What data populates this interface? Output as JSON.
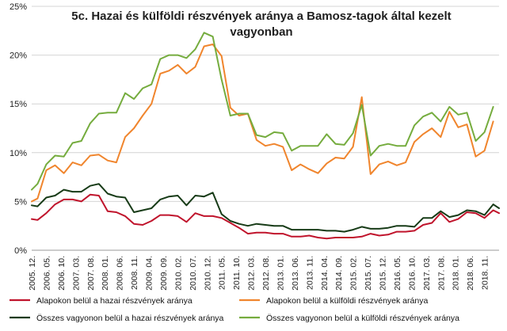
{
  "chart_data": {
    "type": "line",
    "title": "5c. Hazai és külföldi részvények aránya a Bamosz-tagok által kezelt vagyonban",
    "title_lines": [
      "5c. Hazai és külföldi részvények aránya a Bamosz-tagok által kezelt",
      "vagyonban"
    ],
    "ylim": [
      0,
      25
    ],
    "yticks": [
      0,
      5,
      10,
      15,
      20,
      25
    ],
    "ytick_labels": [
      "0%",
      "5%",
      "10%",
      "15%",
      "20%",
      "25%"
    ],
    "x_start": "2005. 12.",
    "x_step_months": 1,
    "xtick_labels": [
      "2005. 12.",
      "2006. 05.",
      "2006. 10.",
      "2007. 03.",
      "2007. 08.",
      "2008. 01.",
      "2008. 06.",
      "2008. 11.",
      "2009. 04.",
      "2009. 09.",
      "2010. 02.",
      "2010. 07.",
      "2010. 12.",
      "2011. 05.",
      "2011. 10.",
      "2012. 03.",
      "2012. 08.",
      "2013. 01.",
      "2013. 06.",
      "2013. 11.",
      "2014. 04.",
      "2014. 09.",
      "2015. 02.",
      "2015. 07.",
      "2015. 12.",
      "2016. 05.",
      "2016. 10.",
      "2017. 03.",
      "2017. 08.",
      "2018. 01.",
      "2018. 06.",
      "2018. 11."
    ],
    "grid": true,
    "legend_position": "bottom",
    "series": [
      {
        "name": "Alapokon belül a hazai részvények aránya",
        "color": "#c0142c",
        "points": [
          [
            0,
            3.2
          ],
          [
            2,
            3.1
          ],
          [
            5,
            3.8
          ],
          [
            8,
            4.7
          ],
          [
            11,
            5.2
          ],
          [
            14,
            5.2
          ],
          [
            17,
            5.0
          ],
          [
            20,
            5.7
          ],
          [
            23,
            5.6
          ],
          [
            26,
            4.0
          ],
          [
            29,
            3.9
          ],
          [
            32,
            3.5
          ],
          [
            35,
            2.7
          ],
          [
            38,
            2.6
          ],
          [
            41,
            3.0
          ],
          [
            44,
            3.6
          ],
          [
            47,
            3.6
          ],
          [
            50,
            3.5
          ],
          [
            53,
            2.9
          ],
          [
            56,
            3.8
          ],
          [
            59,
            3.5
          ],
          [
            62,
            3.5
          ],
          [
            65,
            3.3
          ],
          [
            68,
            2.8
          ],
          [
            71,
            2.3
          ],
          [
            74,
            1.7
          ],
          [
            77,
            1.8
          ],
          [
            80,
            1.8
          ],
          [
            83,
            1.7
          ],
          [
            86,
            1.7
          ],
          [
            89,
            1.4
          ],
          [
            92,
            1.4
          ],
          [
            95,
            1.5
          ],
          [
            98,
            1.3
          ],
          [
            101,
            1.2
          ],
          [
            104,
            1.3
          ],
          [
            107,
            1.3
          ],
          [
            110,
            1.3
          ],
          [
            113,
            1.4
          ],
          [
            116,
            1.7
          ],
          [
            119,
            1.5
          ],
          [
            122,
            1.6
          ],
          [
            125,
            1.9
          ],
          [
            128,
            1.9
          ],
          [
            131,
            2.0
          ],
          [
            134,
            2.6
          ],
          [
            137,
            2.8
          ],
          [
            140,
            3.8
          ],
          [
            143,
            2.9
          ],
          [
            146,
            3.2
          ],
          [
            149,
            3.9
          ],
          [
            152,
            3.8
          ],
          [
            155,
            3.3
          ],
          [
            158,
            4.1
          ],
          [
            160,
            3.8
          ]
        ]
      },
      {
        "name": "Alapokon belül a külföldi részvények aránya",
        "color": "#f0852d",
        "points": [
          [
            0,
            5.0
          ],
          [
            2,
            5.3
          ],
          [
            5,
            8.2
          ],
          [
            8,
            8.7
          ],
          [
            11,
            7.9
          ],
          [
            14,
            9.0
          ],
          [
            17,
            8.7
          ],
          [
            20,
            9.7
          ],
          [
            23,
            9.8
          ],
          [
            26,
            9.2
          ],
          [
            29,
            9.0
          ],
          [
            32,
            11.6
          ],
          [
            35,
            12.5
          ],
          [
            38,
            13.8
          ],
          [
            41,
            15.0
          ],
          [
            44,
            18.1
          ],
          [
            47,
            18.4
          ],
          [
            50,
            19.0
          ],
          [
            53,
            18.1
          ],
          [
            56,
            18.8
          ],
          [
            59,
            20.9
          ],
          [
            62,
            21.1
          ],
          [
            65,
            19.9
          ],
          [
            68,
            14.6
          ],
          [
            71,
            13.8
          ],
          [
            74,
            14.0
          ],
          [
            77,
            11.3
          ],
          [
            80,
            10.7
          ],
          [
            83,
            10.9
          ],
          [
            86,
            10.6
          ],
          [
            89,
            8.2
          ],
          [
            92,
            8.8
          ],
          [
            95,
            8.3
          ],
          [
            98,
            7.9
          ],
          [
            101,
            8.9
          ],
          [
            104,
            9.5
          ],
          [
            107,
            9.4
          ],
          [
            110,
            10.6
          ],
          [
            113,
            15.7
          ],
          [
            116,
            7.8
          ],
          [
            119,
            8.8
          ],
          [
            122,
            9.1
          ],
          [
            125,
            8.7
          ],
          [
            128,
            9.0
          ],
          [
            131,
            11.1
          ],
          [
            134,
            11.9
          ],
          [
            137,
            12.5
          ],
          [
            140,
            11.6
          ],
          [
            143,
            14.2
          ],
          [
            146,
            12.6
          ],
          [
            149,
            12.9
          ],
          [
            152,
            9.6
          ],
          [
            155,
            10.2
          ],
          [
            158,
            13.2
          ]
        ]
      },
      {
        "name": "Összes vagyonon belül a hazai részvények aránya",
        "color": "#173b17",
        "points": [
          [
            0,
            4.6
          ],
          [
            2,
            4.5
          ],
          [
            5,
            5.4
          ],
          [
            8,
            5.6
          ],
          [
            11,
            6.2
          ],
          [
            14,
            6.0
          ],
          [
            17,
            6.0
          ],
          [
            20,
            6.6
          ],
          [
            23,
            6.8
          ],
          [
            26,
            5.8
          ],
          [
            29,
            5.5
          ],
          [
            32,
            5.4
          ],
          [
            35,
            3.9
          ],
          [
            38,
            4.1
          ],
          [
            41,
            4.3
          ],
          [
            44,
            5.2
          ],
          [
            47,
            5.5
          ],
          [
            50,
            5.6
          ],
          [
            53,
            4.6
          ],
          [
            56,
            5.6
          ],
          [
            59,
            5.5
          ],
          [
            62,
            5.9
          ],
          [
            65,
            3.7
          ],
          [
            68,
            3.0
          ],
          [
            71,
            2.7
          ],
          [
            74,
            2.5
          ],
          [
            77,
            2.7
          ],
          [
            80,
            2.6
          ],
          [
            83,
            2.5
          ],
          [
            86,
            2.5
          ],
          [
            89,
            2.1
          ],
          [
            92,
            2.1
          ],
          [
            95,
            2.1
          ],
          [
            98,
            2.1
          ],
          [
            101,
            2.0
          ],
          [
            104,
            2.0
          ],
          [
            107,
            1.9
          ],
          [
            110,
            2.1
          ],
          [
            113,
            2.4
          ],
          [
            116,
            2.2
          ],
          [
            119,
            2.2
          ],
          [
            122,
            2.3
          ],
          [
            125,
            2.5
          ],
          [
            128,
            2.5
          ],
          [
            131,
            2.4
          ],
          [
            134,
            3.3
          ],
          [
            137,
            3.3
          ],
          [
            140,
            4.0
          ],
          [
            143,
            3.4
          ],
          [
            146,
            3.6
          ],
          [
            149,
            4.1
          ],
          [
            152,
            4.0
          ],
          [
            155,
            3.6
          ],
          [
            158,
            4.7
          ],
          [
            160,
            4.3
          ]
        ]
      },
      {
        "name": "Összes vagyonon belül a külföldi részvények aránya",
        "color": "#75ac3e",
        "points": [
          [
            0,
            6.2
          ],
          [
            2,
            6.8
          ],
          [
            5,
            8.8
          ],
          [
            8,
            9.7
          ],
          [
            11,
            9.6
          ],
          [
            14,
            11.0
          ],
          [
            17,
            11.2
          ],
          [
            20,
            13.0
          ],
          [
            23,
            14.0
          ],
          [
            26,
            14.1
          ],
          [
            29,
            14.1
          ],
          [
            32,
            16.1
          ],
          [
            35,
            15.5
          ],
          [
            38,
            16.6
          ],
          [
            41,
            17.0
          ],
          [
            44,
            19.6
          ],
          [
            47,
            20.0
          ],
          [
            50,
            20.0
          ],
          [
            53,
            19.7
          ],
          [
            56,
            20.6
          ],
          [
            59,
            22.3
          ],
          [
            62,
            21.9
          ],
          [
            65,
            17.5
          ],
          [
            68,
            13.8
          ],
          [
            71,
            14.0
          ],
          [
            74,
            14.0
          ],
          [
            77,
            11.8
          ],
          [
            80,
            11.6
          ],
          [
            83,
            12.1
          ],
          [
            86,
            12.0
          ],
          [
            89,
            10.2
          ],
          [
            92,
            10.7
          ],
          [
            95,
            10.7
          ],
          [
            98,
            10.7
          ],
          [
            101,
            11.9
          ],
          [
            104,
            10.9
          ],
          [
            107,
            10.8
          ],
          [
            110,
            12.0
          ],
          [
            113,
            14.9
          ],
          [
            116,
            9.7
          ],
          [
            119,
            10.7
          ],
          [
            122,
            10.9
          ],
          [
            125,
            10.7
          ],
          [
            128,
            10.7
          ],
          [
            131,
            12.8
          ],
          [
            134,
            13.7
          ],
          [
            137,
            14.1
          ],
          [
            140,
            13.2
          ],
          [
            143,
            14.7
          ],
          [
            146,
            13.9
          ],
          [
            149,
            14.1
          ],
          [
            152,
            11.2
          ],
          [
            155,
            12.1
          ],
          [
            158,
            14.7
          ]
        ]
      }
    ]
  }
}
